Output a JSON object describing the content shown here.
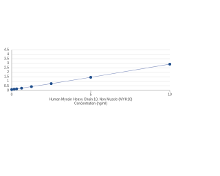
{
  "chart_data": {
    "type": "scatter",
    "xlabel": "Human Myosin Heavy Chain 10, Non Muscle (MYH10)",
    "xlabel2": "Concentration (ng/ml)",
    "x": [
      0,
      0.156,
      0.313,
      0.625,
      1.25,
      2.5,
      5,
      10
    ],
    "values": [
      0.1,
      0.13,
      0.17,
      0.25,
      0.42,
      0.75,
      1.45,
      2.9
    ],
    "color": "#1f4e8c",
    "line_color": "#7f8fbf",
    "xlim": [
      0,
      10
    ],
    "xticks": [
      0,
      5,
      10
    ],
    "ylim": [
      0,
      4.5
    ],
    "yticks": [
      0,
      0.5,
      1,
      1.5,
      2,
      2.5,
      3,
      3.5,
      4,
      4.5
    ],
    "grid": true
  }
}
